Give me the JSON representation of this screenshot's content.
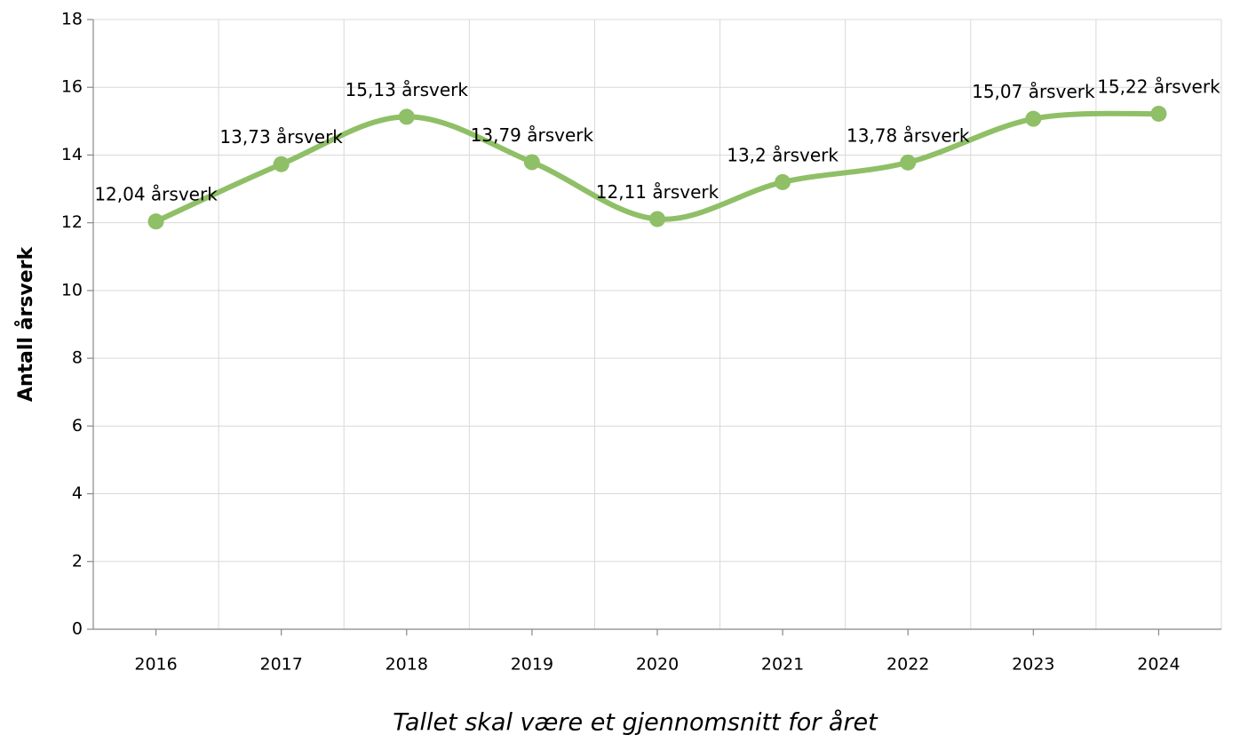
{
  "chart_data": {
    "type": "line",
    "categories": [
      "2016",
      "2017",
      "2018",
      "2019",
      "2020",
      "2021",
      "2022",
      "2023",
      "2024"
    ],
    "series": [
      {
        "name": "Antall årsverk",
        "color": "#8fbf66",
        "values": [
          12.04,
          13.73,
          15.13,
          13.79,
          12.11,
          13.2,
          13.78,
          15.07,
          15.22
        ],
        "value_labels": [
          "12,04 årsverk",
          "13,73 årsverk",
          "15,13 årsverk",
          "13,79 årsverk",
          "12,11 årsverk",
          "13,2 årsverk",
          "13,78 årsverk",
          "15,07 årsverk",
          "15,22 årsverk"
        ]
      }
    ],
    "y_label": "Antall årsverk",
    "x_label": "Tallet skal være et gjennomsnitt for året",
    "ylim": [
      0,
      18
    ],
    "yticks": [
      0,
      2,
      4,
      6,
      8,
      10,
      12,
      14,
      16,
      18
    ],
    "grid": true,
    "smooth": true
  }
}
